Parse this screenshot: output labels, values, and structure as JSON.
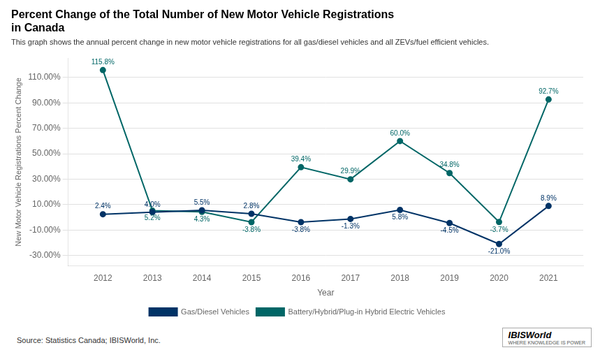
{
  "chart_data": {
    "type": "line",
    "title": [
      "Percent Change of the Total Number of New Motor Vehicle Registrations",
      "in Canada"
    ],
    "subtitle": "This graph shows the annual percent change in new motor vehicle registrations for all gas/diesel vehicles and all ZEVs/fuel efficient vehicles.",
    "x_label": "Year",
    "y_label": "New Motor Vehicle Registrations Percent Change",
    "x": [
      2012,
      2013,
      2014,
      2015,
      2016,
      2017,
      2018,
      2019,
      2020,
      2021
    ],
    "series": [
      {
        "name": "Gas/Diesel Vehicles",
        "color": "#003366",
        "marker": "circle",
        "line_style": "solid",
        "values": [
          2.4,
          4.0,
          5.5,
          2.8,
          -3.8,
          -1.3,
          5.8,
          -4.5,
          -21.0,
          8.9
        ],
        "value_labels": [
          "2.4%",
          "4.0%",
          "5.5%",
          "2.8%",
          "-3.8%",
          "-1.3%",
          "5.8%",
          "-4.5%",
          "-21.0%",
          "8.9%"
        ]
      },
      {
        "name": "Battery/Hybrid/Plug-in Hybrid Electric Vehicles",
        "color": "#006666",
        "marker": "circle",
        "line_style": "solid",
        "values": [
          115.8,
          5.2,
          4.3,
          -3.8,
          39.4,
          29.9,
          60.0,
          34.8,
          -3.7,
          92.7
        ],
        "value_labels": [
          "115.8%",
          "5.2%",
          "4.3%",
          "-3.8%",
          "39.4%",
          "29.9%",
          "60.0%",
          "34.8%",
          "-3.7%",
          "92.7%"
        ]
      }
    ],
    "xlim": [
      2011.3,
      2021.7
    ],
    "xticks": [
      2012,
      2013,
      2014,
      2015,
      2016,
      2017,
      2018,
      2019,
      2020,
      2021
    ],
    "ylim": [
      -38,
      125
    ],
    "yticks": [
      {
        "value": -30,
        "label": "-30.00%"
      },
      {
        "value": -10,
        "label": "-10.00%"
      },
      {
        "value": 10,
        "label": "10.00%"
      },
      {
        "value": 30,
        "label": "30.00%"
      },
      {
        "value": 50,
        "label": "50.00%"
      },
      {
        "value": 70,
        "label": "70.00%"
      },
      {
        "value": 90,
        "label": "90.00%"
      },
      {
        "value": 110,
        "label": "110.00%"
      }
    ],
    "grid": "y",
    "legend": "bottom",
    "data_labels": true,
    "annotations": [
      "Source: Statistics Canada; IBISWorld, Inc.",
      "IBISWorld",
      "WHERE KNOWLEDGE IS POWER"
    ]
  }
}
